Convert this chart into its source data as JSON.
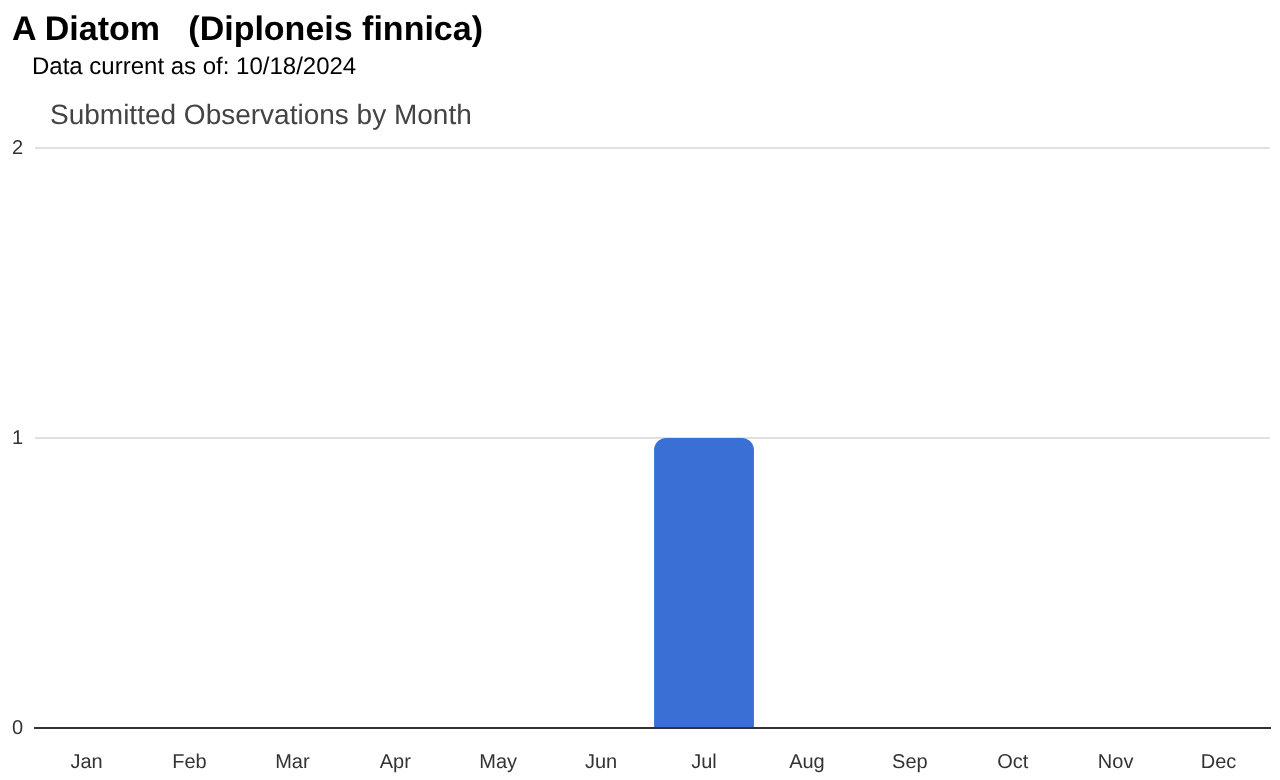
{
  "chart_data": {
    "type": "bar",
    "title": "A Diatom   (Diploneis finnica)",
    "subtitle": "Data current as of: 10/18/2024",
    "annotations": [
      "Submitted Observations by Month"
    ],
    "categories": [
      "Jan",
      "Feb",
      "Mar",
      "Apr",
      "May",
      "Jun",
      "Jul",
      "Aug",
      "Sep",
      "Oct",
      "Nov",
      "Dec"
    ],
    "values": [
      0,
      0,
      0,
      0,
      0,
      0,
      1,
      0,
      0,
      0,
      0,
      0
    ],
    "color": "#3a6fd6",
    "ylim": [
      0,
      2
    ],
    "yticks": [
      0,
      1,
      2
    ],
    "grid": "y",
    "legend": false
  }
}
